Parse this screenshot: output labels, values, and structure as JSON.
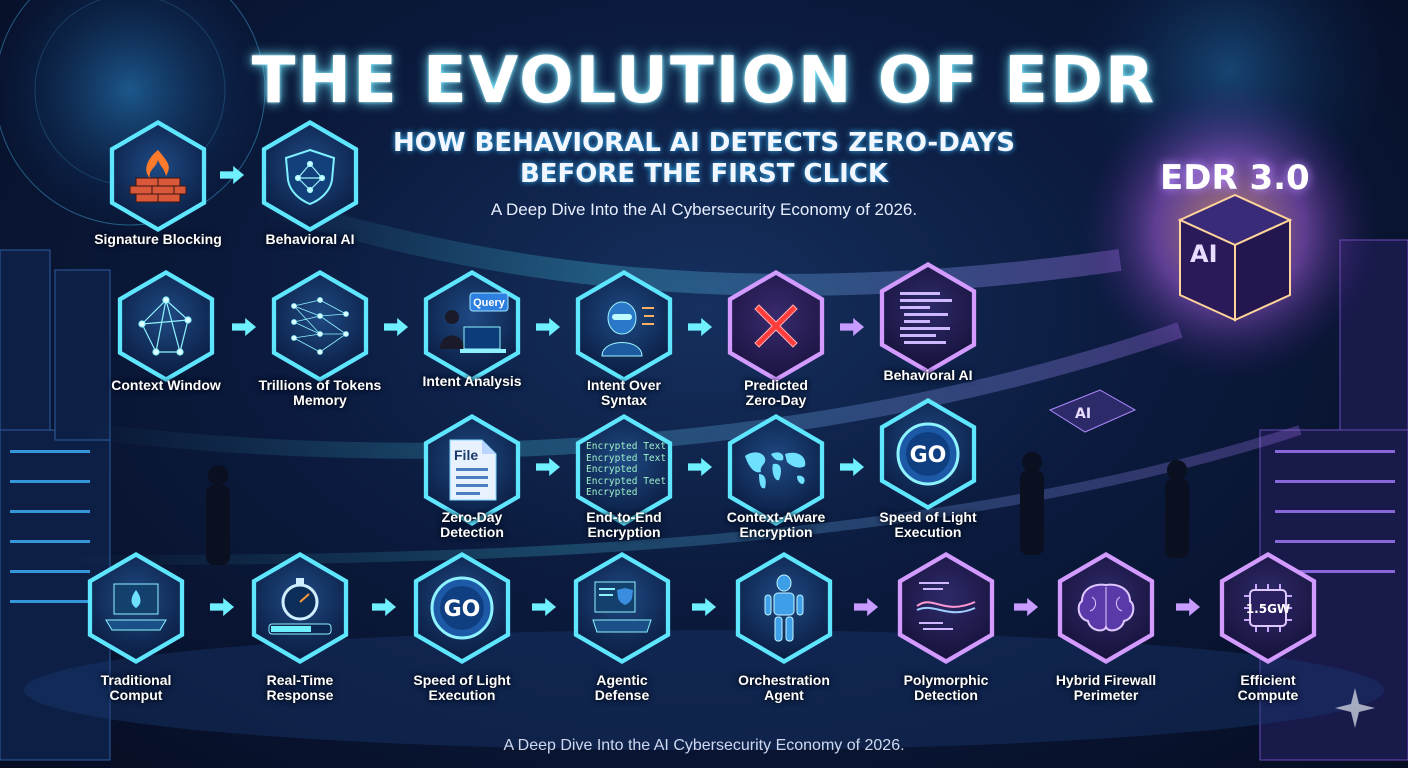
{
  "title": "THE EVOLUTION OF EDR",
  "subtitle_line1": "HOW BEHAVIORAL AI DETECTS ZERO-DAYS",
  "subtitle_line2": "BEFORE THE FIRST CLICK",
  "tagline": "A Deep Dive Into the AI Cybersecurity Economy of 2026.",
  "footer": "A Deep Dive Into the AI Cybersecurity Economy of 2026.",
  "badge": "EDR 3.0",
  "colors": {
    "cyan": "#6ff0ff",
    "purple": "#c79bff",
    "deep_navy": "#071028",
    "fire": "#ff7a2a"
  },
  "row1": [
    {
      "label": "Signature Blocking",
      "icon": "firewall-brick-icon"
    },
    {
      "label": "Behavioral AI",
      "icon": "shield-network-icon"
    }
  ],
  "row2": [
    {
      "label": "Context Window",
      "icon": "node-graph-icon"
    },
    {
      "label1": "Trillions of Tokens",
      "label2": "Memory",
      "icon": "neural-mesh-icon"
    },
    {
      "label": "Intent Analysis",
      "icon": "analyst-laptop-icon",
      "bubble": "Query"
    },
    {
      "label1": "Intent Over",
      "label2": "Syntax",
      "icon": "robot-head-icon"
    },
    {
      "label1": "Predicted",
      "label2": "Zero-Day",
      "icon": "red-x-icon"
    },
    {
      "label": "Behavioral AI",
      "icon": "code-screen-icon"
    }
  ],
  "row3": [
    {
      "label1": "Zero-Day",
      "label2": "Detection",
      "icon": "file-document-icon",
      "file_text": "File"
    },
    {
      "label1": "End-to-End",
      "label2": "Encryption",
      "icon": "encrypted-text-icon",
      "lines": [
        "Encrypted Text",
        "Encrypted Text",
        "Encrypted",
        "Encrypted Teet",
        "Encrypted"
      ]
    },
    {
      "label1": "Context-Aware",
      "label2": "Encryption",
      "icon": "world-map-icon"
    },
    {
      "label1": "Speed of Light",
      "label2": "Execution",
      "icon": "go-button-icon",
      "go": "GO"
    }
  ],
  "row4": [
    {
      "label1": "Traditional",
      "label2": "Comput",
      "icon": "laptop-flame-icon"
    },
    {
      "label1": "Real-Time",
      "label2": "Response",
      "icon": "stopwatch-icon"
    },
    {
      "label1": "Speed of Light",
      "label2": "Execution",
      "icon": "go-button-icon",
      "go": "GO"
    },
    {
      "label1": "Agentic",
      "label2": "Defense",
      "icon": "workstation-icon"
    },
    {
      "label1": "Orchestration",
      "label2": "Agent",
      "icon": "humanoid-robot-icon"
    },
    {
      "label1": "Polymorphic",
      "label2": "Detection",
      "icon": "code-wave-icon"
    },
    {
      "label1": "Hybrid Firewall",
      "label2": "Perimeter",
      "icon": "brain-icon"
    },
    {
      "label1": "Efficient",
      "label2": "Compute",
      "icon": "chip-icon",
      "chip_text": "1.5GW"
    }
  ],
  "ai_chip_label": "AI"
}
